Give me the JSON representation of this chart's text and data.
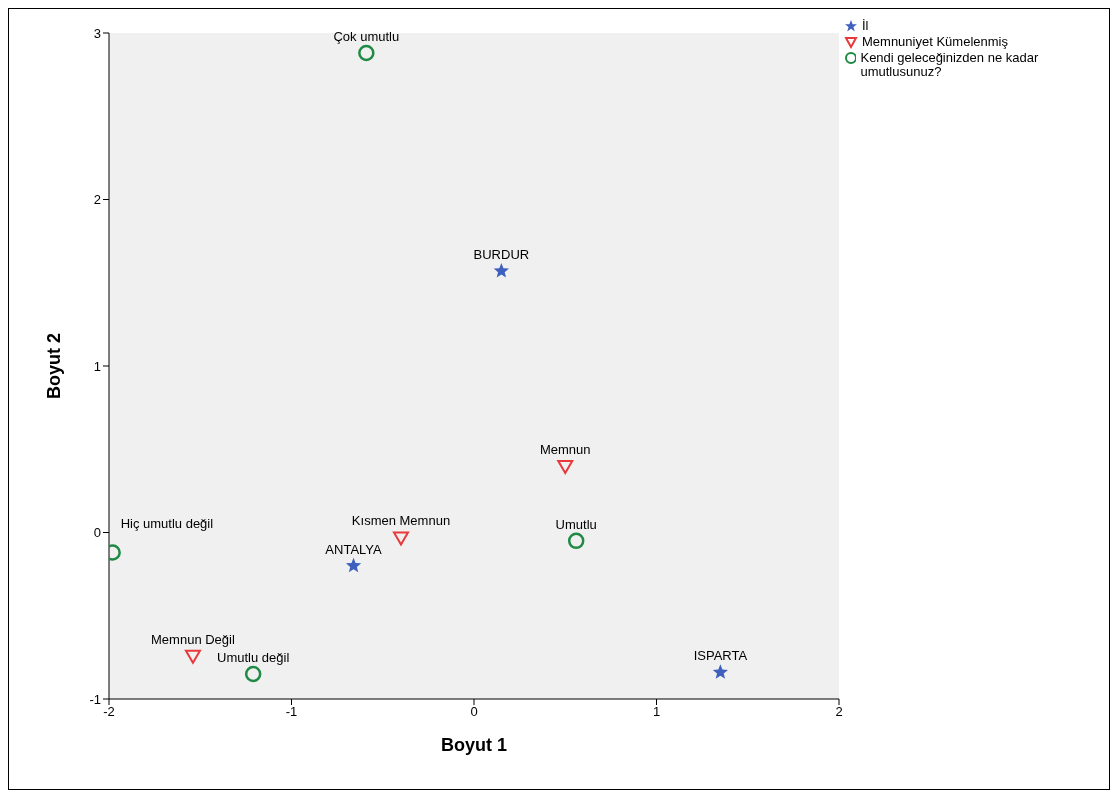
{
  "chart_data": {
    "type": "scatter",
    "xlabel": "Boyut 1",
    "ylabel": "Boyut 2",
    "xlim": [
      -2,
      2
    ],
    "xticks": [
      -2,
      -1,
      0,
      1,
      2
    ],
    "ylim": [
      -1,
      3
    ],
    "yticks": [
      -1,
      0,
      1,
      2,
      3
    ],
    "grid": false,
    "legend": "top right",
    "series": [
      {
        "name": "İl",
        "color": "#3f5fbf",
        "marker": "star",
        "x": [
          0.15,
          -0.66,
          1.35
        ],
        "values": [
          1.57,
          -0.2,
          -0.84
        ]
      },
      {
        "name": "Memnuniyet Kümelenmiş",
        "color": "#e8393b",
        "marker": "triangle",
        "x": [
          0.5,
          -0.4,
          -1.54
        ],
        "values": [
          0.4,
          -0.03,
          -0.74
        ]
      },
      {
        "name": "Kendi geleceğinizden ne kadar umutlusunuz?",
        "color": "#1f8a44",
        "marker": "circle",
        "x": [
          -0.59,
          -1.98,
          0.56,
          -1.21
        ],
        "values": [
          2.88,
          -0.12,
          -0.05,
          -0.85
        ]
      }
    ],
    "annotations": [
      {
        "text": "BURDUR",
        "x": 0.15,
        "y": 1.57
      },
      {
        "text": "ANTALYA",
        "x": -0.66,
        "y": -0.2
      },
      {
        "text": "ISPARTA",
        "x": 1.35,
        "y": -0.84
      },
      {
        "text": "Memnun",
        "x": 0.5,
        "y": 0.4
      },
      {
        "text": "Kısmen Memnun",
        "x": -0.4,
        "y": -0.03
      },
      {
        "text": "Memnun Değil",
        "x": -1.54,
        "y": -0.74
      },
      {
        "text": "Çok umutlu",
        "x": -0.59,
        "y": 2.88
      },
      {
        "text": "Hiç umutlu değil",
        "x": -1.98,
        "y": -0.12
      },
      {
        "text": "Umutlu",
        "x": 0.56,
        "y": -0.05
      },
      {
        "text": "Umutlu değil",
        "x": -1.21,
        "y": -0.85
      }
    ]
  }
}
